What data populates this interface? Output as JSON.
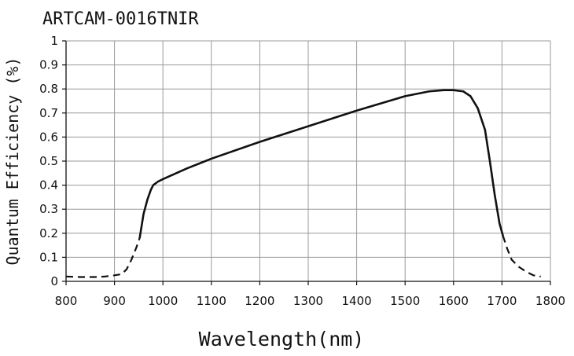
{
  "chart_data": {
    "type": "line",
    "title": "ARTCAM-0016TNIR",
    "xlabel": "Wavelength(nm)",
    "ylabel": "Quantum Efficiency (%)",
    "xlim": [
      800,
      1800
    ],
    "ylim": [
      0,
      1
    ],
    "x_ticks": [
      800,
      900,
      1000,
      1100,
      1200,
      1300,
      1400,
      1500,
      1600,
      1700,
      1800
    ],
    "y_ticks": [
      0,
      0.1,
      0.2,
      0.3,
      0.4,
      0.5,
      0.6,
      0.7,
      0.8,
      0.9,
      1
    ],
    "y_tick_labels": [
      "0",
      "0.1",
      "0.2",
      "0.3",
      "0.4",
      "0.5",
      "0.6",
      "0.7",
      "0.8",
      "0.9",
      "1"
    ],
    "grid": true,
    "legend": "none",
    "line_color": "#111111",
    "series": [
      {
        "style": "dashed",
        "x": [
          800,
          830,
          860,
          880,
          900,
          915,
          925,
          935,
          945,
          952
        ],
        "y": [
          0.02,
          0.018,
          0.018,
          0.02,
          0.025,
          0.03,
          0.05,
          0.09,
          0.14,
          0.18
        ]
      },
      {
        "style": "solid",
        "x": [
          952,
          960,
          968,
          975,
          980,
          990,
          1000,
          1050,
          1100,
          1200,
          1300,
          1400,
          1500,
          1550,
          1580,
          1600,
          1620,
          1635,
          1650,
          1665,
          1675,
          1685,
          1695,
          1702
        ],
        "y": [
          0.18,
          0.28,
          0.34,
          0.38,
          0.4,
          0.415,
          0.425,
          0.47,
          0.51,
          0.58,
          0.645,
          0.71,
          0.77,
          0.79,
          0.795,
          0.795,
          0.79,
          0.77,
          0.72,
          0.63,
          0.5,
          0.36,
          0.24,
          0.19
        ]
      },
      {
        "style": "dashed",
        "x": [
          1702,
          1710,
          1720,
          1735,
          1750,
          1765,
          1780
        ],
        "y": [
          0.19,
          0.14,
          0.09,
          0.06,
          0.04,
          0.025,
          0.02
        ]
      }
    ]
  }
}
